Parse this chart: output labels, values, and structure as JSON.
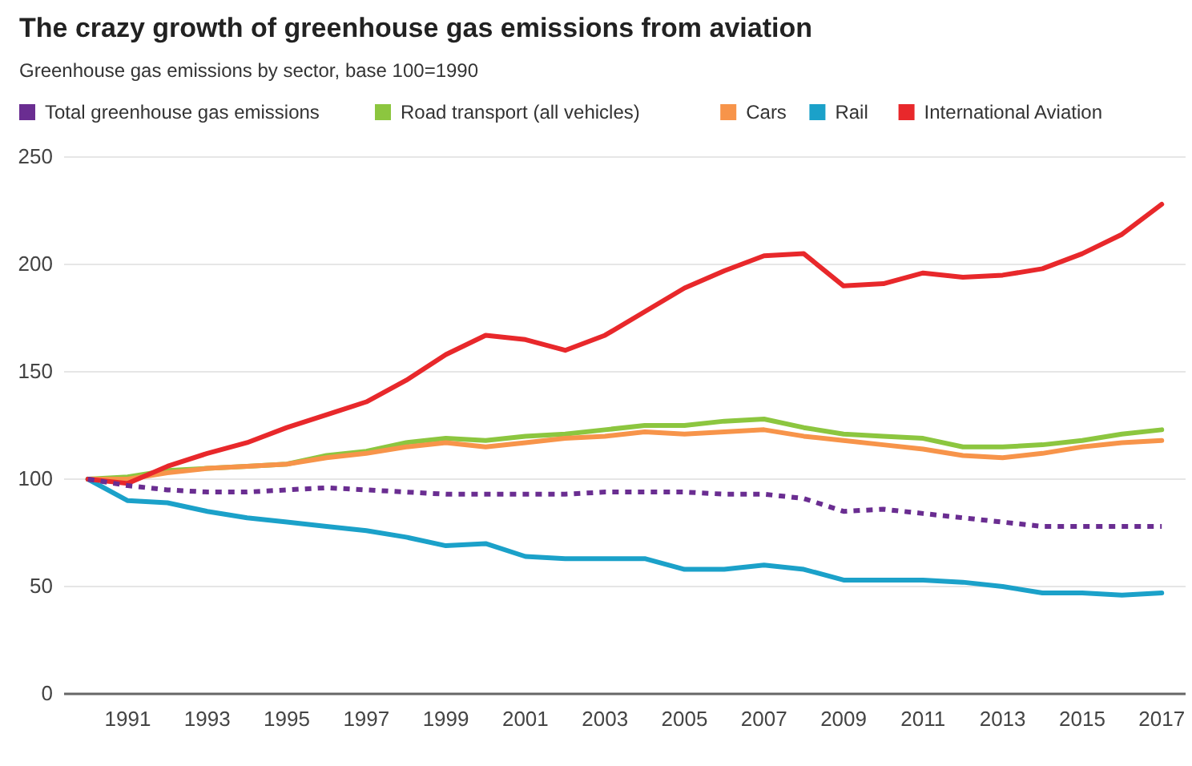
{
  "chart_data": {
    "type": "line",
    "title": "The crazy growth of greenhouse gas emissions from aviation",
    "subtitle": "Greenhouse gas emissions by sector, base 100=1990",
    "x": [
      1990,
      1991,
      1992,
      1993,
      1994,
      1995,
      1996,
      1997,
      1998,
      1999,
      2000,
      2001,
      2002,
      2003,
      2004,
      2005,
      2006,
      2007,
      2008,
      2009,
      2010,
      2011,
      2012,
      2013,
      2014,
      2015,
      2016,
      2017
    ],
    "xlim": [
      1989.4,
      2017.6
    ],
    "xticks": [
      1991,
      1993,
      1995,
      1997,
      1999,
      2001,
      2003,
      2005,
      2007,
      2009,
      2011,
      2013,
      2015,
      2017
    ],
    "ylim": [
      0,
      250
    ],
    "yticks": [
      0,
      50,
      100,
      150,
      200,
      250
    ],
    "grid": "y",
    "legend": "top",
    "series": [
      {
        "name": "Total greenhouse gas emissions",
        "color": "#6a2d91",
        "line_style": "dashed",
        "values": [
          100,
          97,
          95,
          94,
          94,
          95,
          96,
          95,
          94,
          93,
          93,
          93,
          93,
          94,
          94,
          94,
          93,
          93,
          91,
          85,
          86,
          84,
          82,
          80,
          78,
          78,
          78,
          78
        ]
      },
      {
        "name": "Road transport (all vehicles)",
        "color": "#8cc63f",
        "values": [
          100,
          101,
          104,
          105,
          106,
          107,
          111,
          113,
          117,
          119,
          118,
          120,
          121,
          123,
          125,
          125,
          127,
          128,
          124,
          121,
          120,
          119,
          115,
          115,
          116,
          118,
          121,
          123
        ]
      },
      {
        "name": "Cars",
        "color": "#f7944a",
        "values": [
          100,
          100,
          103,
          105,
          106,
          107,
          110,
          112,
          115,
          117,
          115,
          117,
          119,
          120,
          122,
          121,
          122,
          123,
          120,
          118,
          116,
          114,
          111,
          110,
          112,
          115,
          117,
          118
        ]
      },
      {
        "name": "Rail",
        "color": "#1ba1c9",
        "values": [
          100,
          90,
          89,
          85,
          82,
          80,
          78,
          76,
          73,
          69,
          70,
          64,
          63,
          63,
          63,
          58,
          58,
          60,
          58,
          53,
          53,
          53,
          52,
          50,
          47,
          47,
          46,
          47
        ]
      },
      {
        "name": "International Aviation",
        "color": "#e8282b",
        "values": [
          100,
          98,
          106,
          112,
          117,
          124,
          130,
          136,
          146,
          158,
          167,
          165,
          160,
          167,
          178,
          189,
          197,
          204,
          205,
          190,
          191,
          196,
          194,
          195,
          198,
          205,
          214,
          228
        ]
      }
    ]
  }
}
